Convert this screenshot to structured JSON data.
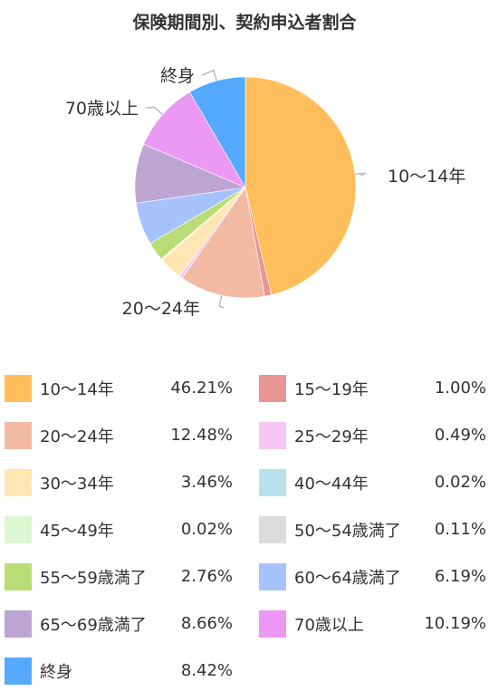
{
  "chart_data": {
    "type": "pie",
    "title": "保険期間別、契約申込者割合",
    "slices": [
      {
        "label": "10～14年",
        "value": 46.21,
        "value_text": "46.21%",
        "color": "#FFBE5C"
      },
      {
        "label": "15～19年",
        "value": 1.0,
        "value_text": "1.00%",
        "color": "#E99595"
      },
      {
        "label": "20～24年",
        "value": 12.48,
        "value_text": "12.48%",
        "color": "#F3BAA3"
      },
      {
        "label": "25～29年",
        "value": 0.49,
        "value_text": "0.49%",
        "color": "#F8C6F5"
      },
      {
        "label": "30～34年",
        "value": 3.46,
        "value_text": "3.46%",
        "color": "#FFE6B3"
      },
      {
        "label": "40～44年",
        "value": 0.02,
        "value_text": "0.02%",
        "color": "#B8E1EE"
      },
      {
        "label": "45～49年",
        "value": 0.02,
        "value_text": "0.02%",
        "color": "#DDF7D3"
      },
      {
        "label": "50～54歳満了",
        "value": 0.11,
        "value_text": "0.11%",
        "color": "#DCDCDC"
      },
      {
        "label": "55～59歳満了",
        "value": 2.76,
        "value_text": "2.76%",
        "color": "#B9DD74"
      },
      {
        "label": "60～64歳満了",
        "value": 6.19,
        "value_text": "6.19%",
        "color": "#A7C3FF"
      },
      {
        "label": "65～69歳満了",
        "value": 8.66,
        "value_text": "8.66%",
        "color": "#BCA5D3"
      },
      {
        "label": "70歳以上",
        "value": 10.19,
        "value_text": "10.19%",
        "color": "#EC98F5"
      },
      {
        "label": "終身",
        "value": 8.42,
        "value_text": "8.42%",
        "color": "#55AAFF"
      }
    ],
    "callouts": [
      "10～14年",
      "20～24年",
      "70歳以上",
      "終身"
    ],
    "start_angle": "top (12 o'clock)",
    "direction": "clockwise",
    "legend_placement": "bottom"
  }
}
